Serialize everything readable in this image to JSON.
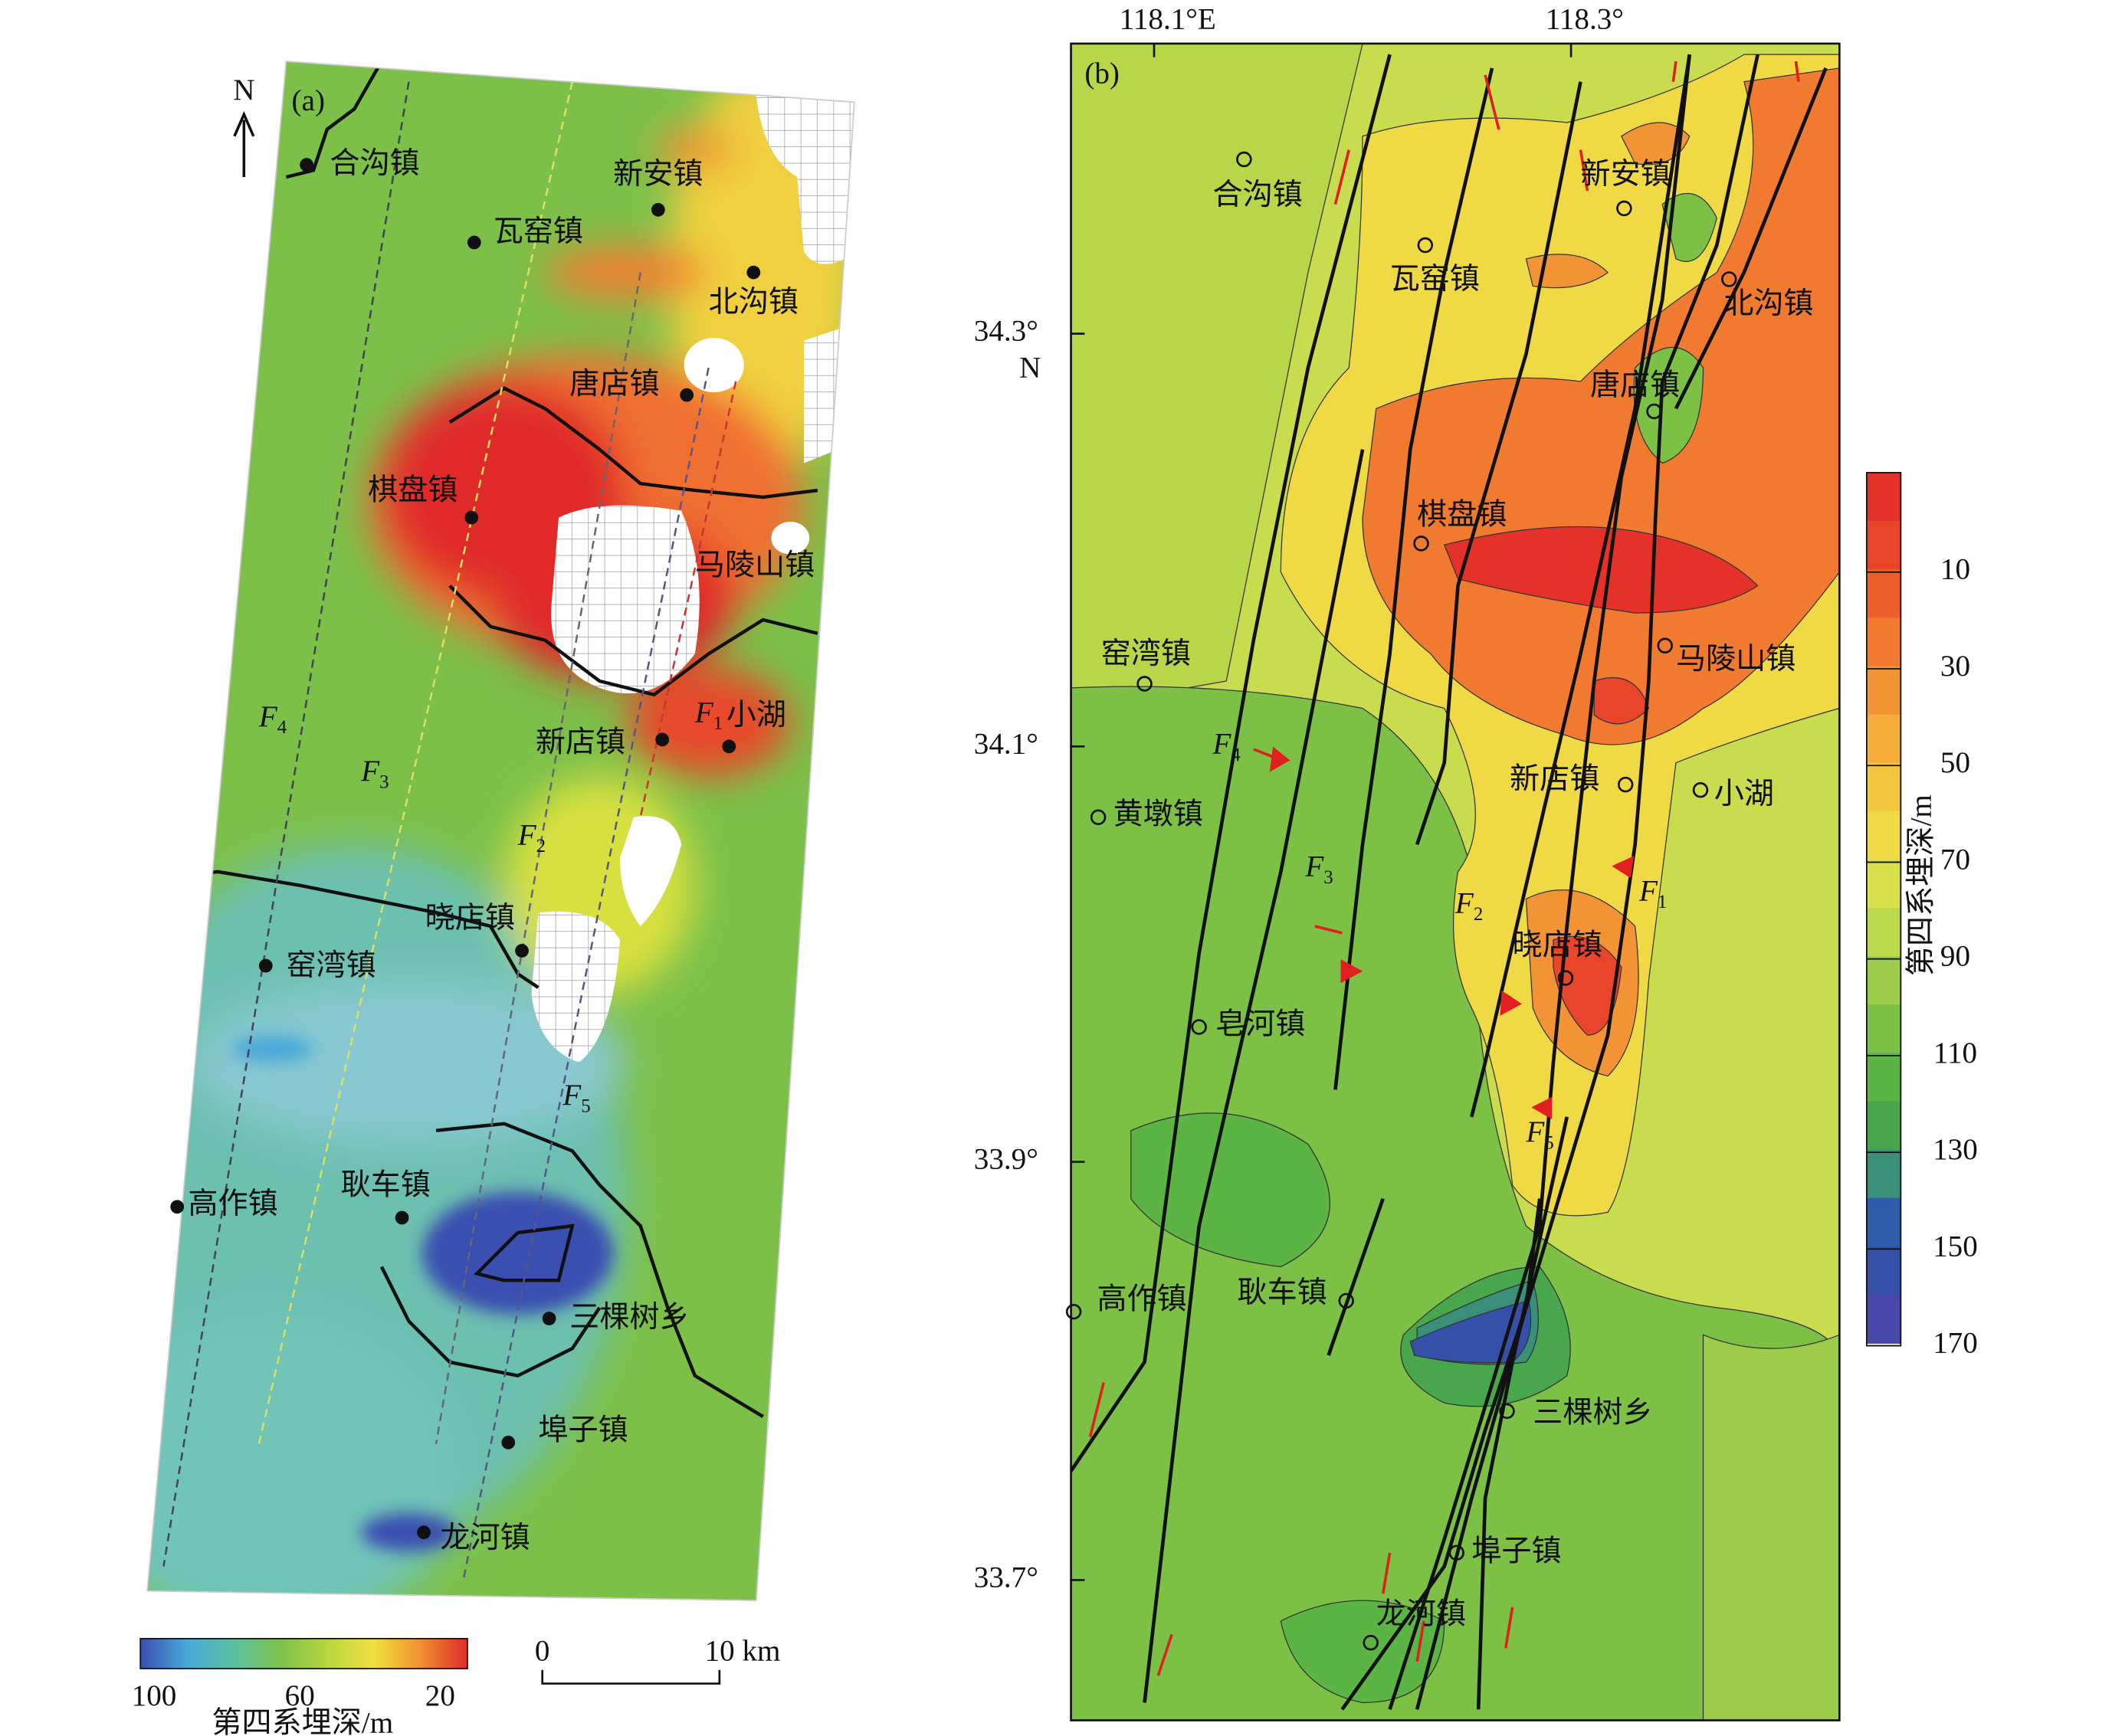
{
  "panel_a": {
    "label": "(a)",
    "north": "N",
    "towns": [
      "合沟镇",
      "新安镇",
      "瓦窑镇",
      "北沟镇",
      "唐店镇",
      "棋盘镇",
      "马陵山镇",
      "新店镇",
      "小湖",
      "晓店镇",
      "窑湾镇",
      "高作镇",
      "耿车镇",
      "三棵树乡",
      "埠子镇",
      "龙河镇"
    ],
    "faults": [
      {
        "letter": "F",
        "sub": "1"
      },
      {
        "letter": "F",
        "sub": "2"
      },
      {
        "letter": "F",
        "sub": "3"
      },
      {
        "letter": "F",
        "sub": "4"
      },
      {
        "letter": "F",
        "sub": "5"
      }
    ],
    "colorbar": {
      "title": "第四系埋深/m",
      "ticks": [
        100,
        60,
        20
      ],
      "colors": [
        "#3a4fb0",
        "#4aa8d8",
        "#5cc0a0",
        "#7ec04a",
        "#b8d640",
        "#f0e040",
        "#f09030",
        "#e02a2a"
      ]
    },
    "scale": {
      "start": "0",
      "end": "10 km"
    }
  },
  "panel_b": {
    "label": "(b)",
    "x_labels": [
      "118.1°E",
      "118.3°"
    ],
    "y_labels": [
      "34.3°",
      "34.1°",
      "33.9°",
      "33.7°"
    ],
    "y_unit": "N",
    "towns": [
      "合沟镇",
      "新安镇",
      "瓦窑镇",
      "北沟镇",
      "唐店镇",
      "棋盘镇",
      "马陵山镇",
      "窑湾镇",
      "新店镇",
      "小湖",
      "黄墩镇",
      "晓店镇",
      "皂河镇",
      "高作镇",
      "耿车镇",
      "三棵树乡",
      "埠子镇",
      "龙河镇"
    ],
    "faults": [
      {
        "letter": "F",
        "sub": "1"
      },
      {
        "letter": "F",
        "sub": "2"
      },
      {
        "letter": "F",
        "sub": "3"
      },
      {
        "letter": "F",
        "sub": "4"
      },
      {
        "letter": "F",
        "sub": "5"
      }
    ],
    "colorbar": {
      "title": "第四系埋深/m",
      "ticks": [
        10,
        30,
        50,
        70,
        90,
        110,
        130,
        150,
        170
      ],
      "band_colors": [
        "#e4322b",
        "#e8452b",
        "#ec5f2c",
        "#ef7a30",
        "#f29436",
        "#f5ad3c",
        "#f2c63f",
        "#efd944",
        "#d8e04c",
        "#bcd84c",
        "#9ccc4a",
        "#7cc046",
        "#5cb444",
        "#48a64c",
        "#3a8f78",
        "#2e5ca8",
        "#3650a8",
        "#4848a8",
        "#5a52b0",
        "#7062b8"
      ]
    }
  }
}
